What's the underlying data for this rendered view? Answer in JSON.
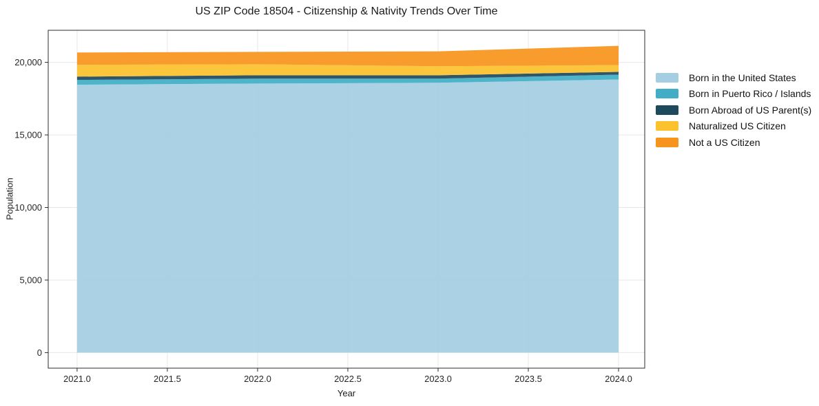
{
  "chart_data": {
    "type": "area",
    "stacked": true,
    "title": "US ZIP Code 18504 - Citizenship & Nativity Trends Over Time",
    "xlabel": "Year",
    "ylabel": "Population",
    "x": [
      2021,
      2022,
      2023,
      2024
    ],
    "series": [
      {
        "name": "Born in the United States",
        "color": "#a5cee3",
        "values": [
          18460,
          18540,
          18590,
          18820
        ]
      },
      {
        "name": "Born in Puerto Rico / Islands",
        "color": "#41aec6",
        "values": [
          330,
          335,
          285,
          330
        ]
      },
      {
        "name": "Born Abroad of US Parent(s)",
        "color": "#1f4a5e",
        "values": [
          230,
          235,
          235,
          190
        ]
      },
      {
        "name": "Naturalized US Citizen",
        "color": "#fcc22d",
        "values": [
          810,
          760,
          620,
          470
        ]
      },
      {
        "name": "Not a US Citizen",
        "color": "#f7941e",
        "values": [
          850,
          850,
          1030,
          1330
        ]
      }
    ],
    "totals": [
      20680,
      20720,
      20760,
      21140
    ],
    "x_tick_labels": [
      "2021.0",
      "2021.5",
      "2022.0",
      "2022.5",
      "2023.0",
      "2023.5",
      "2024.0"
    ],
    "x_tick_values": [
      2021,
      2021.5,
      2022,
      2022.5,
      2023,
      2023.5,
      2024
    ],
    "y_tick_labels": [
      "0",
      "5,000",
      "10,000",
      "15,000",
      "20,000"
    ],
    "y_tick_values": [
      0,
      5000,
      10000,
      15000,
      20000
    ],
    "xlim": [
      2020.84,
      2024.145
    ],
    "ylim": [
      -1070,
      22210
    ],
    "grid": true,
    "grid_color": "#e7e7e7",
    "spine_color": "#2b2b2b",
    "legend_position": "right"
  }
}
